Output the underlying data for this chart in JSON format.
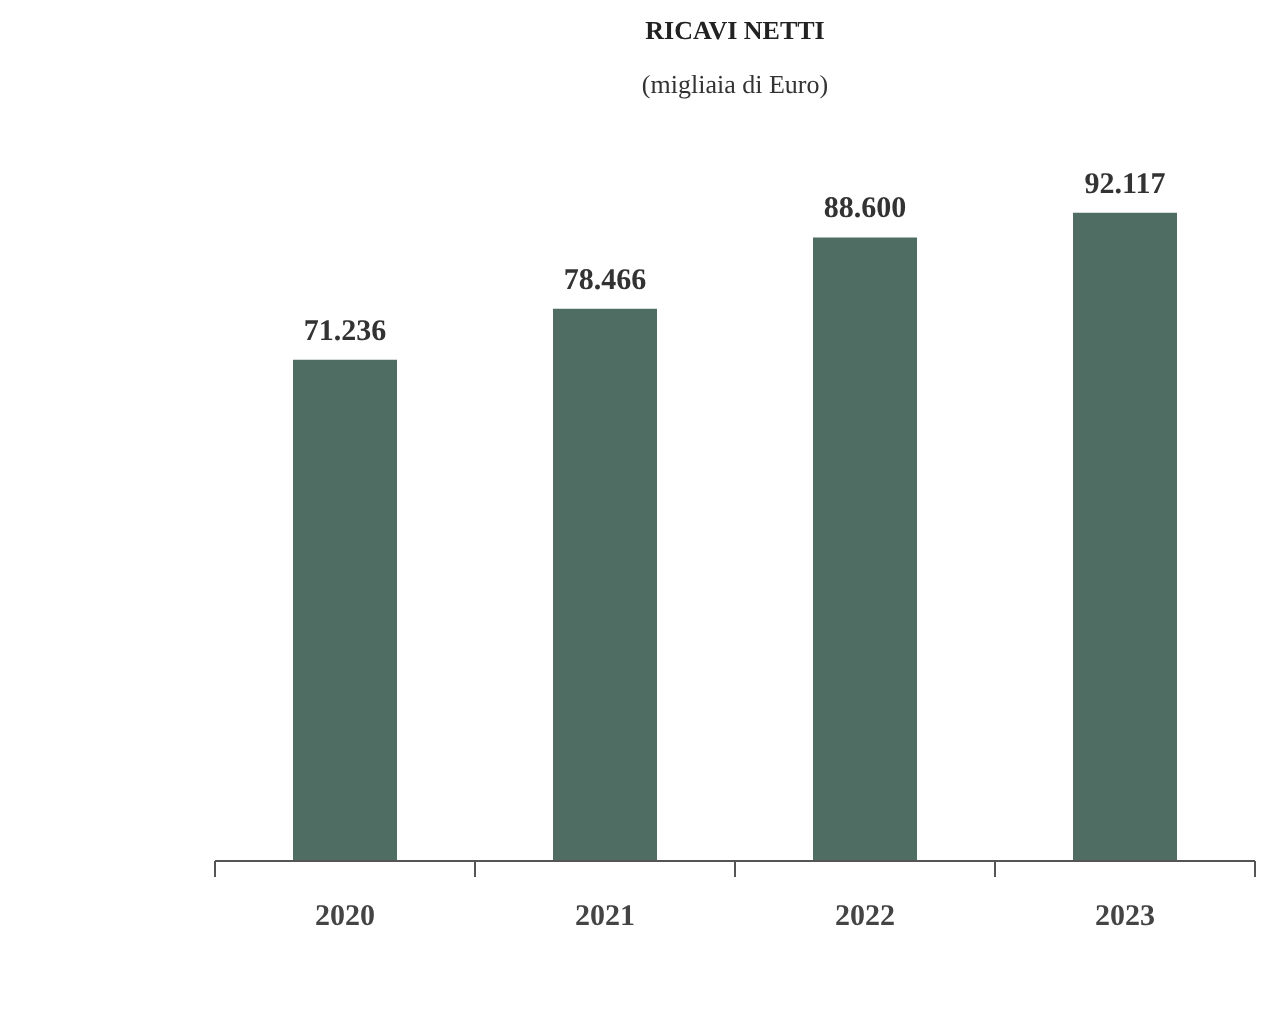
{
  "chart_data": {
    "type": "bar",
    "title": "RICAVI NETTI",
    "subtitle": "(migliaia di Euro)",
    "categories": [
      "2020",
      "2021",
      "2022",
      "2023"
    ],
    "values": [
      71236,
      78466,
      88600,
      92117
    ],
    "value_labels": [
      "71.236",
      "78.466",
      "88.600",
      "92.117"
    ],
    "color": "#4f6d62",
    "grid": false
  }
}
